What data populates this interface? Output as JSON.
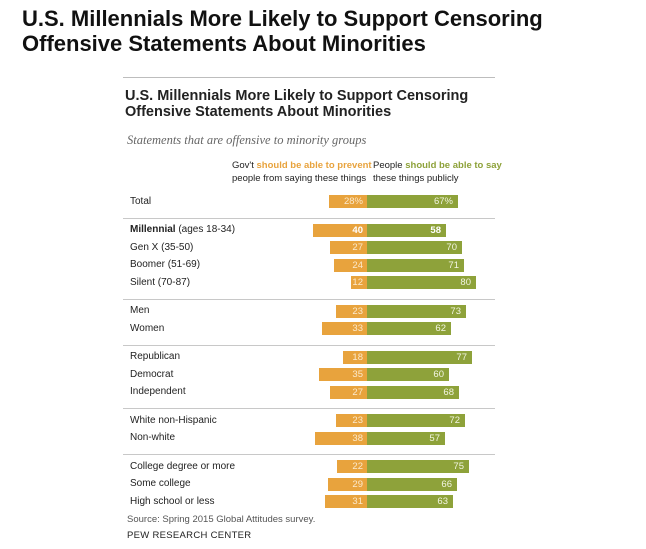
{
  "outer_title": {
    "line1": "U.S. Millennials More Likely to Support Censoring",
    "line2": "Offensive Statements About Minorities"
  },
  "chart_data": {
    "type": "bar",
    "orientation": "diverging-horizontal",
    "title": "U.S. Millennials More Likely to Support Censoring Offensive Statements About Minorities",
    "title_lines": [
      "U.S. Millennials More Likely to Support Censoring",
      "Offensive Statements About Minorities"
    ],
    "subtitle": "Statements that are offensive to minority groups",
    "header_left": {
      "line1_prefix": "Gov't ",
      "line1_highlight": "should be able to prevent",
      "line2": "people from saying these things"
    },
    "header_right": {
      "line1_prefix": "People ",
      "line1_highlight": "should be able to say",
      "line2": "these things publicly"
    },
    "series": [
      {
        "name": "Gov't should be able to prevent people from saying these things",
        "color": "#e8a33d"
      },
      {
        "name": "People should be able to say these things publicly",
        "color": "#8ea23a"
      }
    ],
    "groups": [
      {
        "rows": [
          {
            "label": "Total",
            "label_rest": "",
            "prevent": 28,
            "prevent_label": "28%",
            "say": 67,
            "say_label": "67%",
            "bold": false
          }
        ]
      },
      {
        "rows": [
          {
            "label": "Millennial",
            "label_rest": " (ages 18-34)",
            "prevent": 40,
            "prevent_label": "40",
            "say": 58,
            "say_label": "58",
            "bold": true
          },
          {
            "label": "Gen X (35-50)",
            "label_rest": "",
            "prevent": 27,
            "prevent_label": "27",
            "say": 70,
            "say_label": "70",
            "bold": false
          },
          {
            "label": "Boomer (51-69)",
            "label_rest": "",
            "prevent": 24,
            "prevent_label": "24",
            "say": 71,
            "say_label": "71",
            "bold": false
          },
          {
            "label": "Silent (70-87)",
            "label_rest": "",
            "prevent": 12,
            "prevent_label": "12",
            "say": 80,
            "say_label": "80",
            "bold": false
          }
        ]
      },
      {
        "rows": [
          {
            "label": "Men",
            "label_rest": "",
            "prevent": 23,
            "prevent_label": "23",
            "say": 73,
            "say_label": "73",
            "bold": false
          },
          {
            "label": "Women",
            "label_rest": "",
            "prevent": 33,
            "prevent_label": "33",
            "say": 62,
            "say_label": "62",
            "bold": false
          }
        ]
      },
      {
        "rows": [
          {
            "label": "Republican",
            "label_rest": "",
            "prevent": 18,
            "prevent_label": "18",
            "say": 77,
            "say_label": "77",
            "bold": false
          },
          {
            "label": "Democrat",
            "label_rest": "",
            "prevent": 35,
            "prevent_label": "35",
            "say": 60,
            "say_label": "60",
            "bold": false
          },
          {
            "label": "Independent",
            "label_rest": "",
            "prevent": 27,
            "prevent_label": "27",
            "say": 68,
            "say_label": "68",
            "bold": false
          }
        ]
      },
      {
        "rows": [
          {
            "label": "White non-Hispanic",
            "label_rest": "",
            "prevent": 23,
            "prevent_label": "23",
            "say": 72,
            "say_label": "72",
            "bold": false
          },
          {
            "label": "Non-white",
            "label_rest": "",
            "prevent": 38,
            "prevent_label": "38",
            "say": 57,
            "say_label": "57",
            "bold": false
          }
        ]
      },
      {
        "rows": [
          {
            "label": "College degree or more",
            "label_rest": "",
            "prevent": 22,
            "prevent_label": "22",
            "say": 75,
            "say_label": "75",
            "bold": false
          },
          {
            "label": "Some college",
            "label_rest": "",
            "prevent": 29,
            "prevent_label": "29",
            "say": 66,
            "say_label": "66",
            "bold": false
          },
          {
            "label": "High school or less",
            "label_rest": "",
            "prevent": 31,
            "prevent_label": "31",
            "say": 63,
            "say_label": "63",
            "bold": false
          }
        ]
      }
    ],
    "source": "Source: Spring 2015 Global Attitudes survey.",
    "credit": "PEW RESEARCH CENTER"
  }
}
